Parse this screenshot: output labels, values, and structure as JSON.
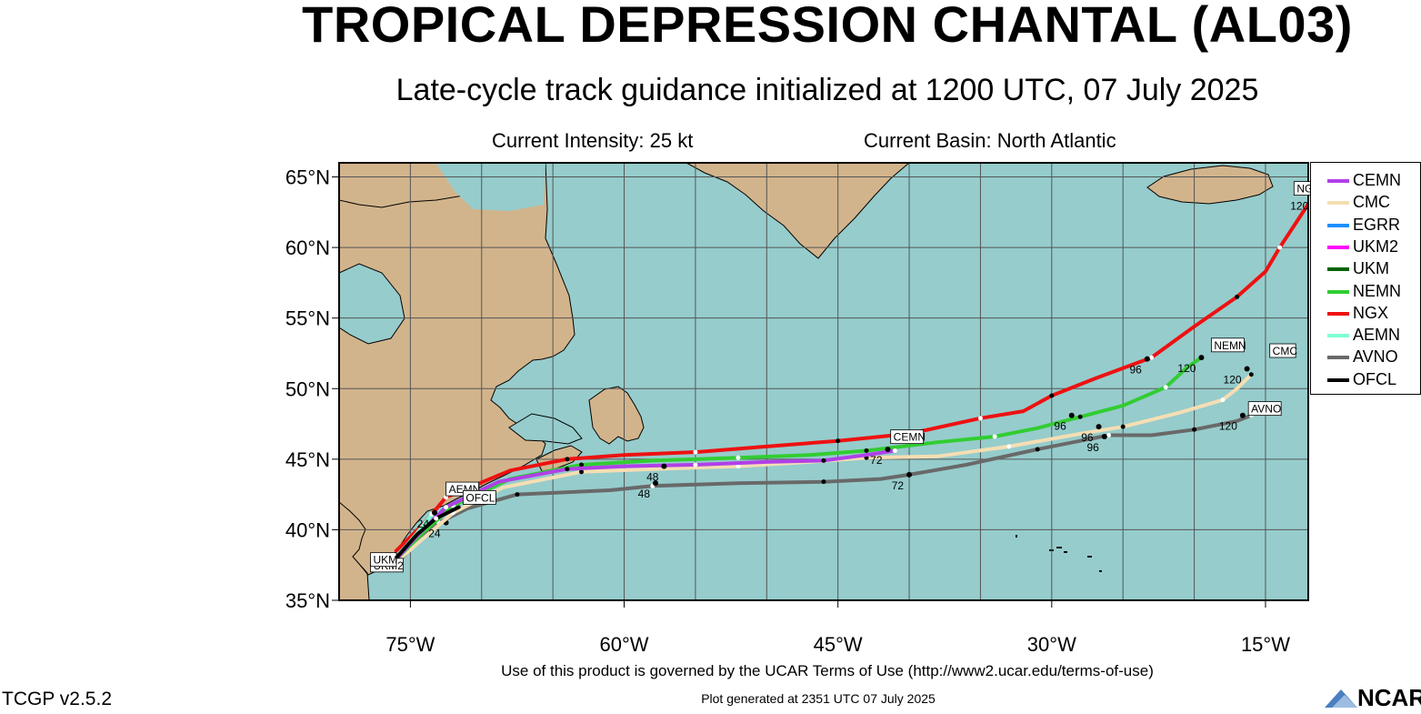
{
  "header": {
    "title": "TROPICAL DEPRESSION CHANTAL (AL03)",
    "subtitle": "Late-cycle track guidance initialized at 1200 UTC, 07 July 2025",
    "current_intensity": "Current Intensity: 25 kt",
    "current_basin": "Current Basin: North Atlantic"
  },
  "map": {
    "lon_range": [
      -80,
      -12
    ],
    "lat_range": [
      35,
      66
    ],
    "lon_ticks": [
      {
        "value": -75,
        "label": "75°W"
      },
      {
        "value": -60,
        "label": "60°W"
      },
      {
        "value": -45,
        "label": "45°W"
      },
      {
        "value": -30,
        "label": "30°W"
      },
      {
        "value": -15,
        "label": "15°W"
      }
    ],
    "lat_ticks": [
      {
        "value": 35,
        "label": "35°N"
      },
      {
        "value": 40,
        "label": "40°N"
      },
      {
        "value": 45,
        "label": "45°N"
      },
      {
        "value": 50,
        "label": "50°N"
      },
      {
        "value": 55,
        "label": "55°N"
      },
      {
        "value": 60,
        "label": "60°N"
      },
      {
        "value": 65,
        "label": "65°N"
      }
    ],
    "grid_lon": [
      -75,
      -70,
      -65,
      -60,
      -55,
      -50,
      -45,
      -40,
      -35,
      -30,
      -25,
      -20,
      -15
    ],
    "grid_lat": [
      35,
      40,
      45,
      50,
      55,
      60,
      65
    ],
    "ocean_color": "#96cccc",
    "land_color": "#d2b48c"
  },
  "legend": [
    {
      "name": "CEMN",
      "color": "#b040e8"
    },
    {
      "name": "CMC",
      "color": "#f5deb3"
    },
    {
      "name": "EGRR",
      "color": "#1e90ff"
    },
    {
      "name": "UKM2",
      "color": "#ff00ff"
    },
    {
      "name": "UKM",
      "color": "#006400"
    },
    {
      "name": "NEMN",
      "color": "#32cd32"
    },
    {
      "name": "NGX",
      "color": "#ee1111"
    },
    {
      "name": "AEMN",
      "color": "#7fffd4"
    },
    {
      "name": "AVNO",
      "color": "#696969"
    },
    {
      "name": "OFCL",
      "color": "#000000"
    }
  ],
  "tracks": [
    {
      "model": "AVNO",
      "color": "#696969",
      "label": "AVNO",
      "label_pos": [
        -16.2,
        48.3
      ],
      "points": [
        [
          -76.2,
          37.3
        ],
        [
          -74.5,
          39.2
        ],
        [
          -73,
          40.5
        ],
        [
          -71,
          41.5
        ],
        [
          -67.5,
          42.5
        ],
        [
          -61,
          42.8
        ],
        [
          -58,
          43.1
        ],
        [
          -52,
          43.3
        ],
        [
          -46,
          43.4
        ],
        [
          -42,
          43.6
        ],
        [
          -40,
          43.9
        ],
        [
          -36,
          44.6
        ],
        [
          -31,
          45.7
        ],
        [
          -28,
          46.3
        ],
        [
          -26,
          46.7
        ],
        [
          -23,
          46.7
        ],
        [
          -20,
          47.1
        ],
        [
          -17,
          47.7
        ],
        [
          -16,
          48.1
        ]
      ],
      "labeled_times": [
        {
          "t": "24",
          "at": [
            -72.5,
            40.5
          ]
        },
        {
          "t": "48",
          "at": [
            -57.8,
            43.3
          ]
        },
        {
          "t": "72",
          "at": [
            -40,
            43.9
          ]
        },
        {
          "t": "96",
          "at": [
            -26.3,
            46.6
          ]
        },
        {
          "t": "120",
          "at": [
            -16.6,
            48.1
          ]
        }
      ]
    },
    {
      "model": "CMC",
      "color": "#f5deb3",
      "label": "CMC",
      "label_pos": [
        -14.7,
        52.4
      ],
      "points": [
        [
          -76,
          37.7
        ],
        [
          -74.3,
          39.2
        ],
        [
          -72,
          41.2
        ],
        [
          -68.5,
          43
        ],
        [
          -63,
          44.1
        ],
        [
          -58,
          44.3
        ],
        [
          -52,
          44.5
        ],
        [
          -47,
          44.8
        ],
        [
          -43,
          45.1
        ],
        [
          -38,
          45.2
        ],
        [
          -33,
          45.9
        ],
        [
          -28,
          46.8
        ],
        [
          -25,
          47.3
        ],
        [
          -21,
          48.3
        ],
        [
          -18,
          49.2
        ],
        [
          -17,
          50
        ],
        [
          -16,
          51
        ]
      ],
      "labeled_times": [
        {
          "t": "96",
          "at": [
            -26.7,
            47.3
          ]
        },
        {
          "t": "120",
          "at": [
            -16.3,
            51.4
          ]
        }
      ]
    },
    {
      "model": "NEMN",
      "color": "#32cd32",
      "label": "NEMN",
      "label_pos": [
        -18.8,
        52.8
      ],
      "points": [
        [
          -76,
          37.9
        ],
        [
          -74,
          39.9
        ],
        [
          -72,
          41.7
        ],
        [
          -68,
          43.6
        ],
        [
          -63,
          44.6
        ],
        [
          -58,
          44.9
        ],
        [
          -52,
          45.1
        ],
        [
          -47,
          45.3
        ],
        [
          -43,
          45.6
        ],
        [
          -38,
          46.2
        ],
        [
          -34,
          46.6
        ],
        [
          -31,
          47.2
        ],
        [
          -28,
          48
        ],
        [
          -25,
          48.8
        ],
        [
          -22,
          50.1
        ],
        [
          -20.5,
          51.5
        ],
        [
          -19.5,
          52.2
        ]
      ],
      "labeled_times": [
        {
          "t": "96",
          "at": [
            -28.6,
            48.1
          ]
        },
        {
          "t": "120",
          "at": [
            -19.5,
            52.2
          ]
        }
      ]
    },
    {
      "model": "NGX",
      "color": "#ee1111",
      "label": "NGX",
      "label_pos": [
        -13,
        63.9
      ],
      "points": [
        [
          -76,
          38.5
        ],
        [
          -74,
          40.5
        ],
        [
          -72.5,
          42.3
        ],
        [
          -68,
          44.2
        ],
        [
          -64,
          45
        ],
        [
          -60,
          45.3
        ],
        [
          -55,
          45.5
        ],
        [
          -50,
          45.9
        ],
        [
          -45,
          46.3
        ],
        [
          -40,
          46.8
        ],
        [
          -35,
          47.9
        ],
        [
          -32,
          48.4
        ],
        [
          -30,
          49.5
        ],
        [
          -27,
          50.7
        ],
        [
          -23,
          52.2
        ],
        [
          -20,
          54.4
        ],
        [
          -17,
          56.5
        ],
        [
          -15,
          58.3
        ],
        [
          -14,
          60
        ],
        [
          -12.7,
          62
        ],
        [
          -11.6,
          63.7
        ]
      ],
      "labeled_times": [
        {
          "t": "96",
          "at": [
            -23.3,
            52.1
          ]
        },
        {
          "t": "120",
          "at": [
            -11.6,
            63.7
          ]
        }
      ]
    },
    {
      "model": "CEMN",
      "color": "#b040e8",
      "label": "CEMN",
      "label_pos": [
        -41.3,
        46.3
      ],
      "points": [
        [
          -76,
          37.9
        ],
        [
          -74.5,
          39.6
        ],
        [
          -72.5,
          41.6
        ],
        [
          -68.8,
          43.4
        ],
        [
          -64,
          44.3
        ],
        [
          -60,
          44.5
        ],
        [
          -55,
          44.6
        ],
        [
          -50,
          44.8
        ],
        [
          -46,
          44.9
        ],
        [
          -43,
          45.3
        ],
        [
          -41,
          45.6
        ]
      ],
      "labeled_times": [
        {
          "t": "48",
          "at": [
            -57.2,
            44.5
          ]
        },
        {
          "t": "72",
          "at": [
            -41.5,
            45.7
          ]
        }
      ]
    },
    {
      "model": "UKM2",
      "color": "#ff00ff",
      "label": "UKM2",
      "label_pos": [
        -77.8,
        37.2
      ],
      "points": [
        [
          -76.6,
          37.3
        ],
        [
          -76,
          38.2
        ]
      ],
      "labeled_times": []
    },
    {
      "model": "UKM",
      "color": "#006400",
      "label": "UKM",
      "label_pos": [
        -77.8,
        37.6
      ],
      "points": [
        [
          -76.5,
          37.5
        ],
        [
          -76,
          38.2
        ]
      ],
      "labeled_times": []
    },
    {
      "model": "AEMN",
      "color": "#7fffd4",
      "label": "AEMN",
      "label_pos": [
        -72.5,
        42.6
      ],
      "points": [
        [
          -76,
          38
        ],
        [
          -74.5,
          39.8
        ],
        [
          -73.5,
          41.1
        ]
      ],
      "labeled_times": []
    },
    {
      "model": "OFCL",
      "color": "#000000",
      "label": "OFCL",
      "label_pos": [
        -71.3,
        42
      ],
      "points": [
        [
          -76,
          38
        ],
        [
          -74.5,
          39.7
        ],
        [
          -73.2,
          40.8
        ],
        [
          -71.6,
          41.6
        ]
      ],
      "labeled_times": [
        {
          "t": "24",
          "at": [
            -73.3,
            41.2
          ]
        }
      ]
    }
  ],
  "footer": {
    "terms": "Use of this product is governed by the UCAR Terms of Use (http://www2.ucar.edu/terms-of-use)",
    "generated": "Plot generated at 2351 UTC   07 July 2025",
    "version": "TCGP v2.5.2",
    "logo_text": "NCAR"
  }
}
